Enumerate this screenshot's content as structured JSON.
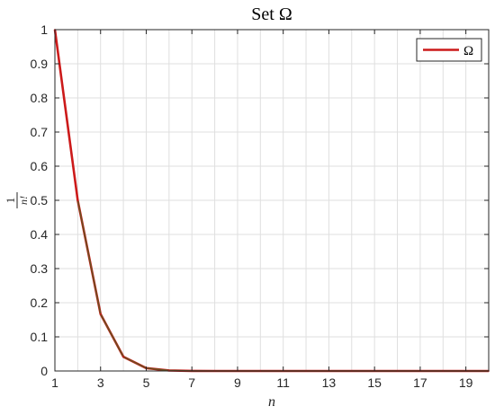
{
  "chart_data": {
    "type": "line",
    "title": "Set Ω",
    "xlabel": "n",
    "ylabel_num": "1",
    "ylabel_den": "n!",
    "xlim": [
      1,
      20
    ],
    "ylim": [
      0,
      1
    ],
    "x_ticks": [
      1,
      3,
      5,
      7,
      9,
      11,
      13,
      15,
      17,
      19
    ],
    "y_ticks": [
      0,
      0.1,
      0.2,
      0.3,
      0.4,
      0.5,
      0.6,
      0.7,
      0.8,
      0.9,
      1
    ],
    "x_minor_gridlines": [
      2,
      4,
      6,
      8,
      10,
      12,
      14,
      16,
      18,
      20
    ],
    "grid": true,
    "legend_position": "top-right",
    "series": [
      {
        "name": "Ω",
        "color": "#cc1a1a",
        "x": [
          1,
          2,
          3,
          4,
          5,
          6,
          7,
          8,
          9,
          10,
          11,
          12,
          13,
          14,
          15,
          16,
          17,
          18,
          19,
          20
        ],
        "values": [
          1,
          0.5,
          0.1667,
          0.0417,
          0.0083,
          0.0014,
          0.0002,
          2e-05,
          0,
          0,
          0,
          0,
          0,
          0,
          0,
          0,
          0,
          0,
          0,
          0
        ]
      }
    ],
    "overlay_color": "#6b4f1f"
  }
}
